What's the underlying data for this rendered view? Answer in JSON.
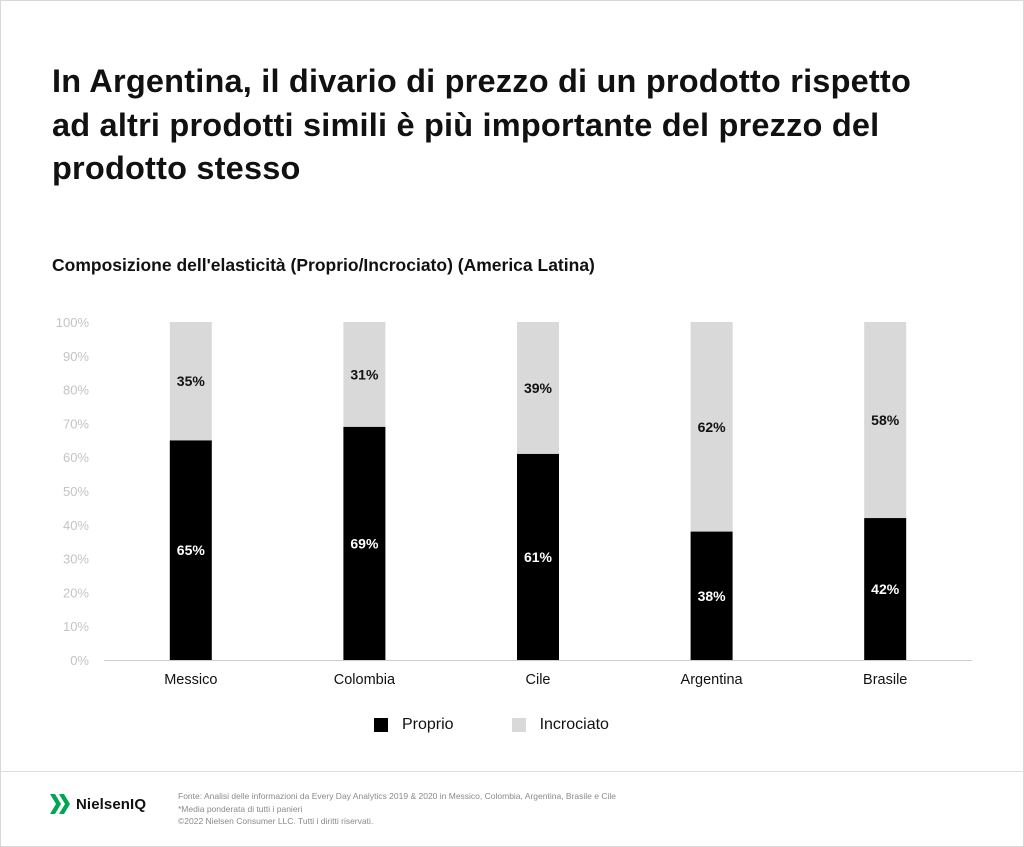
{
  "title": "In Argentina, il divario di prezzo di un prodotto rispetto ad altri prodotti simili è più importante del prezzo del prodotto stesso",
  "subtitle": "Composizione dell'elasticità (Proprio/Incrociato) (America Latina)",
  "chart_data": {
    "type": "bar",
    "stacked": true,
    "categories": [
      "Messico",
      "Colombia",
      "Cile",
      "Argentina",
      "Brasile"
    ],
    "series": [
      {
        "name": "Proprio",
        "values": [
          65,
          69,
          61,
          38,
          42
        ],
        "labels": [
          "65%",
          "69%",
          "61%",
          "38%",
          "42%"
        ],
        "color": "#000000",
        "label_color": "#ffffff"
      },
      {
        "name": "Incrociato",
        "values": [
          35,
          31,
          39,
          62,
          58
        ],
        "labels": [
          "35%",
          "31%",
          "39%",
          "62%",
          "58%"
        ],
        "color": "#d9d9d9",
        "label_color": "#111111"
      }
    ],
    "y_ticks": [
      "0%",
      "10%",
      "20%",
      "30%",
      "40%",
      "50%",
      "60%",
      "70%",
      "80%",
      "90%",
      "100%"
    ],
    "ylim": [
      0,
      100
    ],
    "grid": false,
    "legend_position": "bottom-center"
  },
  "legend": [
    {
      "label": "Proprio",
      "color": "#000000"
    },
    {
      "label": "Incrociato",
      "color": "#d9d9d9"
    }
  ],
  "footer": {
    "logo_text": "NielsenIQ",
    "logo_color": "#00a651",
    "lines": [
      "Fonte: Analisi delle informazioni da Every Day Analytics 2019 & 2020 in Messico, Colombia, Argentina, Brasile e Cile",
      "*Media ponderata di tutti i panieri",
      "©2022 Nielsen Consumer LLC. Tutti i diritti riservati."
    ]
  }
}
